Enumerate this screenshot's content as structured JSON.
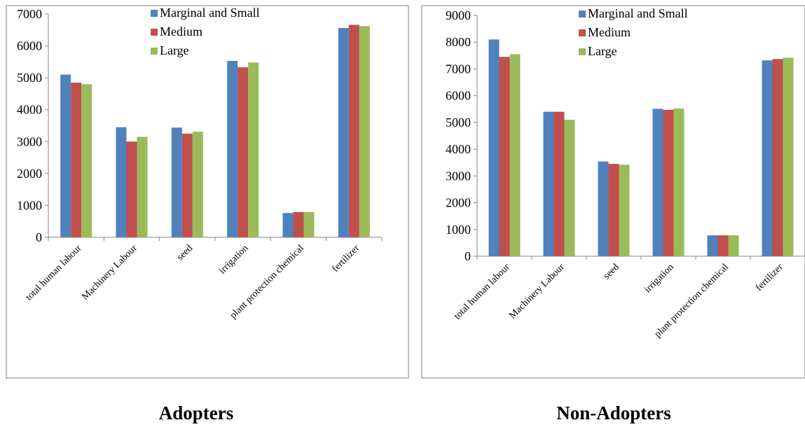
{
  "colors": {
    "series": [
      "#4F81BD",
      "#C0504D",
      "#9BBB59"
    ],
    "frame": "#7f7f7f",
    "axis": "#868686"
  },
  "captions": [
    "Adopters",
    "Non-Adopters"
  ],
  "chart_data": [
    {
      "type": "bar",
      "title": "",
      "xlabel": "",
      "ylabel": "",
      "ylim": [
        0,
        7000
      ],
      "y_ticks": [
        0,
        1000,
        2000,
        3000,
        4000,
        5000,
        6000,
        7000
      ],
      "grid": false,
      "legend_position": "top-right",
      "categories": [
        "total human labour",
        "Machinery Labour",
        "seed",
        "irrigation",
        "plant protection chemical",
        "fertilizer"
      ],
      "series": [
        {
          "name": "Marginal and Small",
          "values": [
            5100,
            3450,
            3440,
            5530,
            760,
            6560
          ]
        },
        {
          "name": "Medium",
          "values": [
            4850,
            3000,
            3250,
            5330,
            790,
            6660
          ]
        },
        {
          "name": "Large",
          "values": [
            4800,
            3150,
            3310,
            5480,
            790,
            6620
          ]
        }
      ]
    },
    {
      "type": "bar",
      "title": "",
      "xlabel": "",
      "ylabel": "",
      "ylim": [
        0,
        9000
      ],
      "y_ticks": [
        0,
        1000,
        2000,
        3000,
        4000,
        5000,
        6000,
        7000,
        8000,
        9000
      ],
      "grid": false,
      "legend_position": "top-right",
      "categories": [
        "total human labour",
        "Machinery Labour",
        "seed",
        "irrigation",
        "plant protection chemical",
        "fertilizer"
      ],
      "series": [
        {
          "name": "Marginal and Small",
          "values": [
            8100,
            5400,
            3540,
            5510,
            780,
            7320
          ]
        },
        {
          "name": "Medium",
          "values": [
            7450,
            5400,
            3450,
            5470,
            780,
            7370
          ]
        },
        {
          "name": "Large",
          "values": [
            7550,
            5100,
            3420,
            5520,
            780,
            7420
          ]
        }
      ]
    }
  ]
}
